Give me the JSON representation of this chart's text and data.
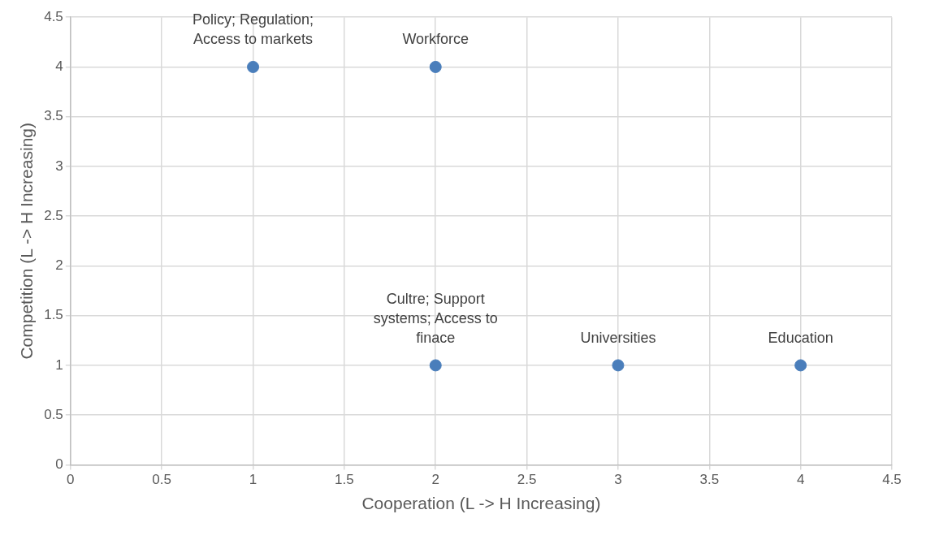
{
  "chart_data": {
    "type": "scatter",
    "xlabel": "Cooperation (L -> H Increasing)",
    "ylabel": "Competition (L -> H Increasing)",
    "series": [
      {
        "color": "#4a7ebb",
        "x": [
          1,
          2,
          2,
          3,
          4
        ],
        "values": [
          4,
          4,
          1,
          1,
          1
        ]
      }
    ],
    "xlim": [
      0,
      4.5
    ],
    "xticks": [
      0,
      0.5,
      1,
      1.5,
      2,
      2.5,
      3,
      3.5,
      4,
      4.5
    ],
    "ylim": [
      0,
      4.5
    ],
    "yticks": [
      0,
      0.5,
      1,
      1.5,
      2,
      2.5,
      3,
      3.5,
      4,
      4.5
    ],
    "grid": true,
    "legend": false,
    "marker": "circle",
    "annotations": [
      {
        "text": "Policy; Regulation; Access to markets",
        "x": 1,
        "y": 4
      },
      {
        "text": "Workforce",
        "x": 2,
        "y": 4
      },
      {
        "text": "Cultre; Support systems; Access to finace",
        "x": 2,
        "y": 1
      },
      {
        "text": "Universities",
        "x": 3,
        "y": 1
      },
      {
        "text": "Education",
        "x": 4,
        "y": 1
      }
    ]
  }
}
